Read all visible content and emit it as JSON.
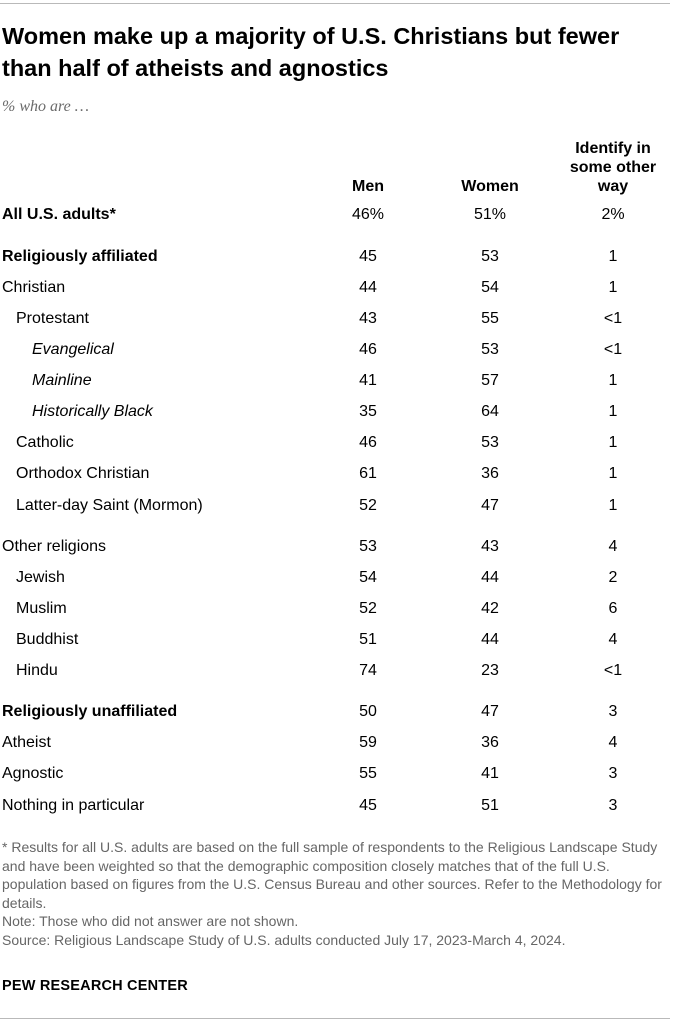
{
  "title": "Women make up a majority of U.S. Christians but fewer than half of atheists and agnostics",
  "subtitle": "% who are …",
  "columns": {
    "men": "Men",
    "women": "Women",
    "other": "Identify in some other way"
  },
  "chart_data": {
    "type": "table",
    "columns": [
      "Men",
      "Women",
      "Identify in some other way"
    ],
    "rows": [
      {
        "label": "All U.S. adults*",
        "style": "bold",
        "indent": 0,
        "values": [
          "46%",
          "51%",
          "2%"
        ]
      },
      {
        "label": "Religiously affiliated",
        "style": "bold",
        "indent": 0,
        "values": [
          "45",
          "53",
          "1"
        ]
      },
      {
        "label": "Christian",
        "style": "normal",
        "indent": 0,
        "values": [
          "44",
          "54",
          "1"
        ]
      },
      {
        "label": "Protestant",
        "style": "normal",
        "indent": 1,
        "values": [
          "43",
          "55",
          "<1"
        ]
      },
      {
        "label": "Evangelical",
        "style": "italic",
        "indent": 2,
        "values": [
          "46",
          "53",
          "<1"
        ]
      },
      {
        "label": "Mainline",
        "style": "italic",
        "indent": 2,
        "values": [
          "41",
          "57",
          "1"
        ]
      },
      {
        "label": "Historically Black",
        "style": "italic",
        "indent": 2,
        "values": [
          "35",
          "64",
          "1"
        ]
      },
      {
        "label": "Catholic",
        "style": "normal",
        "indent": 1,
        "values": [
          "46",
          "53",
          "1"
        ]
      },
      {
        "label": "Orthodox Christian",
        "style": "normal",
        "indent": 1,
        "values": [
          "61",
          "36",
          "1"
        ]
      },
      {
        "label": "Latter-day Saint (Mormon)",
        "style": "normal",
        "indent": 1,
        "values": [
          "52",
          "47",
          "1"
        ]
      },
      {
        "label": "Other religions",
        "style": "normal",
        "indent": 0,
        "values": [
          "53",
          "43",
          "4"
        ]
      },
      {
        "label": "Jewish",
        "style": "normal",
        "indent": 1,
        "values": [
          "54",
          "44",
          "2"
        ]
      },
      {
        "label": "Muslim",
        "style": "normal",
        "indent": 1,
        "values": [
          "52",
          "42",
          "6"
        ]
      },
      {
        "label": "Buddhist",
        "style": "normal",
        "indent": 1,
        "values": [
          "51",
          "44",
          "4"
        ]
      },
      {
        "label": "Hindu",
        "style": "normal",
        "indent": 1,
        "values": [
          "74",
          "23",
          "<1"
        ]
      },
      {
        "label": "Religiously unaffiliated",
        "style": "bold",
        "indent": 0,
        "values": [
          "50",
          "47",
          "3"
        ]
      },
      {
        "label": "Atheist",
        "style": "normal",
        "indent": 0,
        "values": [
          "59",
          "36",
          "4"
        ]
      },
      {
        "label": "Agnostic",
        "style": "normal",
        "indent": 0,
        "values": [
          "55",
          "41",
          "3"
        ]
      },
      {
        "label": "Nothing in particular",
        "style": "normal",
        "indent": 0,
        "values": [
          "45",
          "51",
          "3"
        ]
      }
    ]
  },
  "notes": {
    "asterisk": "* Results for all U.S. adults are based on the full sample of respondents to the Religious Landscape Study and have been weighted so that the demographic composition closely matches that of the full U.S. population based on figures from the U.S. Census Bureau and other sources. Refer to the Methodology for details.",
    "note": "Note: Those who did not answer are not shown.",
    "source": "Source: Religious Landscape Study of U.S. adults conducted July 17, 2023-March 4, 2024."
  },
  "brand": "PEW RESEARCH CENTER"
}
